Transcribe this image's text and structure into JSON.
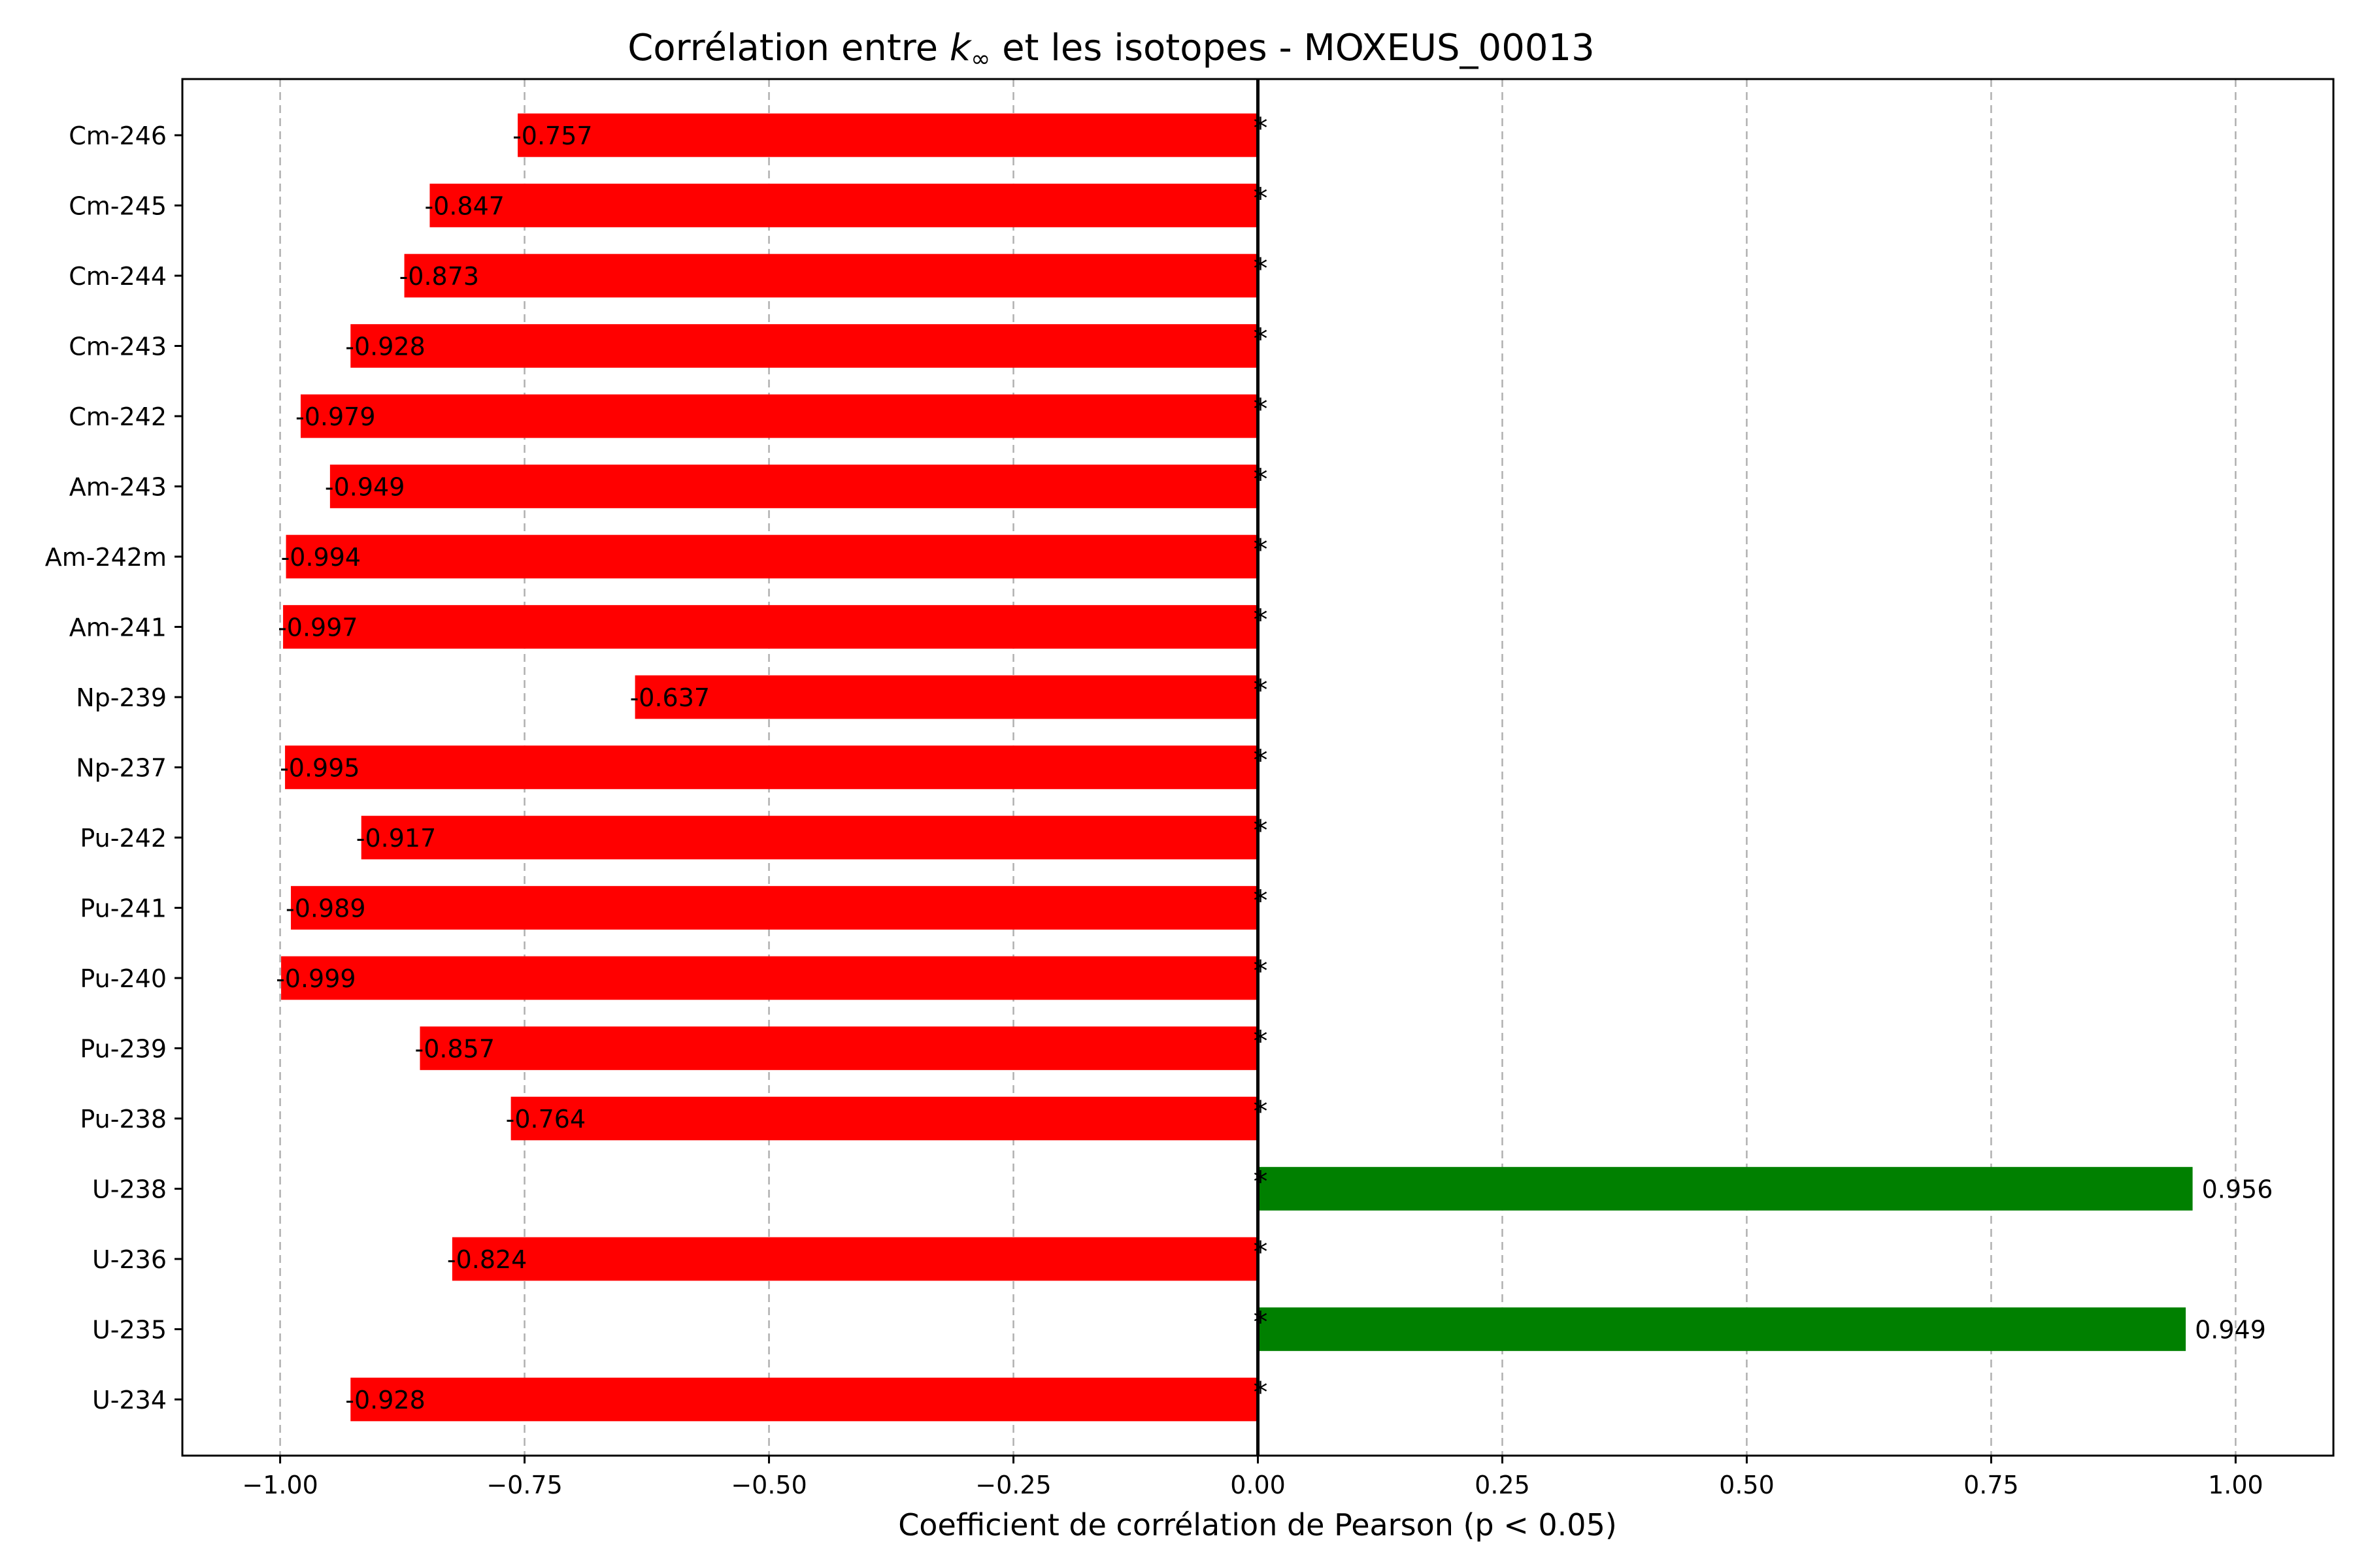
{
  "chart_data": {
    "type": "bar",
    "orientation": "horizontal",
    "title_main": "Corrélation entre ",
    "title_k": "k",
    "title_sub": "∞",
    "title_rest": " et les isotopes - MOXEUS_00013",
    "xlabel": "Coefficient de corrélation de Pearson (p < 0.05)",
    "ylabel": "",
    "xlim": [
      -1.1,
      1.1
    ],
    "xticks": [
      -1.0,
      -0.75,
      -0.5,
      -0.25,
      0.0,
      0.25,
      0.5,
      0.75,
      1.0
    ],
    "xtick_labels": [
      "−1.00",
      "−0.75",
      "−0.50",
      "−0.25",
      "0.00",
      "0.25",
      "0.50",
      "0.75",
      "1.00"
    ],
    "grid": "x-dashed",
    "categories": [
      "U-234",
      "U-235",
      "U-236",
      "U-238",
      "Pu-238",
      "Pu-239",
      "Pu-240",
      "Pu-241",
      "Pu-242",
      "Np-237",
      "Np-239",
      "Am-241",
      "Am-242m",
      "Am-243",
      "Cm-242",
      "Cm-243",
      "Cm-244",
      "Cm-245",
      "Cm-246"
    ],
    "values": [
      -0.928,
      0.949,
      -0.824,
      0.956,
      -0.764,
      -0.857,
      -0.999,
      -0.989,
      -0.917,
      -0.995,
      -0.637,
      -0.997,
      -0.994,
      -0.949,
      -0.979,
      -0.928,
      -0.873,
      -0.847,
      -0.757
    ],
    "labels": [
      "-0.928",
      "0.949",
      "-0.824",
      "0.956",
      "-0.764",
      "-0.857",
      "-0.999",
      "-0.989",
      "-0.917",
      "-0.995",
      "-0.637",
      "-0.997",
      "-0.994",
      "-0.949",
      "-0.979",
      "-0.928",
      "-0.873",
      "-0.847",
      "-0.757"
    ],
    "significance_marker": "*",
    "colors": {
      "positive": "#008000",
      "negative": "#ff0000",
      "grid": "#b0b0b0",
      "zero_line": "#000000"
    }
  }
}
